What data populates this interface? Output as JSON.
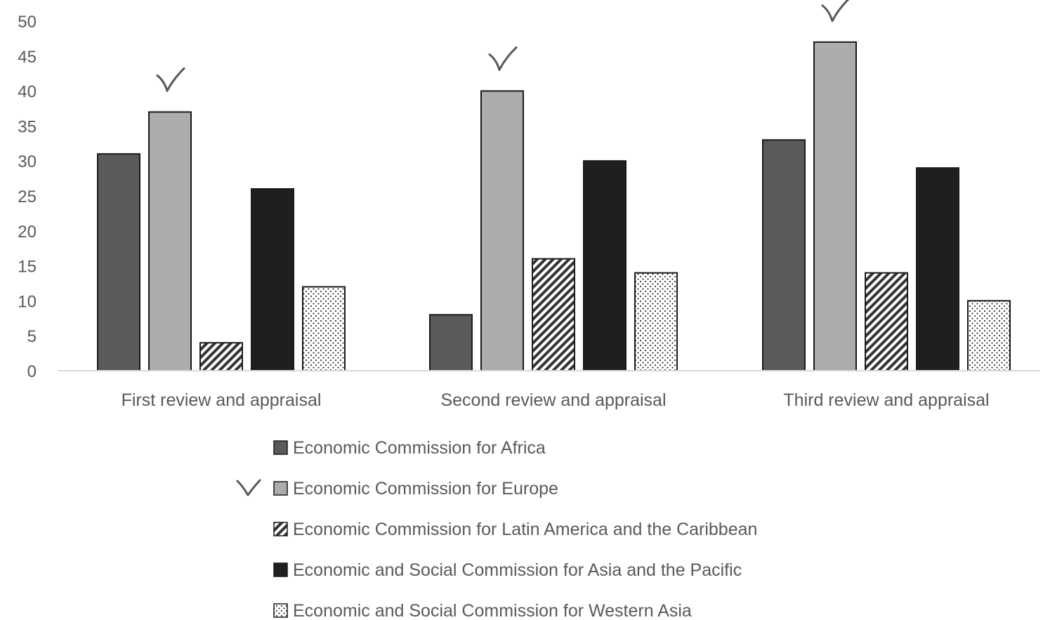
{
  "chart_data": {
    "type": "bar",
    "title": "",
    "xlabel": "",
    "ylabel": "",
    "ylim": [
      0,
      50
    ],
    "yticks": [
      0,
      5,
      10,
      15,
      20,
      25,
      30,
      35,
      40,
      45,
      50
    ],
    "grid": false,
    "legend_position": "bottom",
    "categories": [
      "First review and appraisal",
      "Second review and appraisal",
      "Third review and appraisal"
    ],
    "series": [
      {
        "name": "Economic Commission for Africa",
        "values": [
          31,
          8,
          33
        ],
        "fill": "#5a5a5a",
        "pattern": "solid"
      },
      {
        "name": "Economic Commission for Europe",
        "values": [
          37,
          40,
          47
        ],
        "fill": "#acacac",
        "pattern": "solid",
        "checked": true
      },
      {
        "name": "Economic Commission for Latin America and the Caribbean",
        "values": [
          4,
          16,
          14
        ],
        "fill": "#404040",
        "pattern": "diagonal-hatch"
      },
      {
        "name": "Economic and Social Commission for Asia and the Pacific",
        "values": [
          26,
          30,
          29
        ],
        "fill": "#1f1f1f",
        "pattern": "solid"
      },
      {
        "name": "Economic and Social Commission for Western Asia",
        "values": [
          12,
          14,
          10
        ],
        "fill": "#ffffff",
        "pattern": "dots"
      }
    ],
    "annotations": [
      "check-mark above Economic Commission for Europe bar in each group",
      "check-mark beside Economic Commission for Europe legend entry"
    ]
  }
}
